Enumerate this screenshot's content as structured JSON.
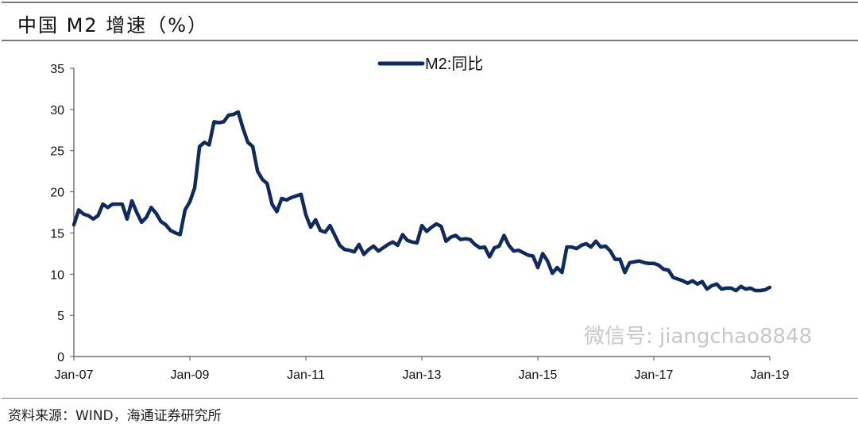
{
  "header": {
    "title": "中国 M2 增速（%）"
  },
  "footer": {
    "source": "资料来源：WIND，海通证券研究所"
  },
  "watermark": {
    "text": "微信号: jiangchao8848"
  },
  "colors": {
    "series": "#0f2a5f",
    "axis": "#555555"
  },
  "chart_data": {
    "type": "line",
    "title": "中国 M2 增速（%）",
    "xlabel": "",
    "ylabel": "",
    "ylim": [
      0,
      35
    ],
    "yticks": [
      0,
      5,
      10,
      15,
      20,
      25,
      30,
      35
    ],
    "xticks": [
      "Jan-07",
      "Jan-09",
      "Jan-11",
      "Jan-13",
      "Jan-15",
      "Jan-17",
      "Jan-19"
    ],
    "x_start": "Jan-07",
    "x_unit": "month",
    "legend": {
      "position": "top-center",
      "entries": [
        "M2:同比"
      ]
    },
    "grid": false,
    "series": [
      {
        "name": "M2:同比",
        "values": [
          16.0,
          17.8,
          17.3,
          17.1,
          16.7,
          17.1,
          18.5,
          18.1,
          18.5,
          18.5,
          18.5,
          16.7,
          18.9,
          17.5,
          16.3,
          16.9,
          18.1,
          17.4,
          16.4,
          16.0,
          15.3,
          15.0,
          14.8,
          17.8,
          18.8,
          20.5,
          25.5,
          26.0,
          25.7,
          28.5,
          28.4,
          28.5,
          29.3,
          29.4,
          29.7,
          27.7,
          26.0,
          25.5,
          22.5,
          21.5,
          21.0,
          18.5,
          17.6,
          19.2,
          19.0,
          19.3,
          19.5,
          19.7,
          17.2,
          15.7,
          16.6,
          15.3,
          15.1,
          15.9,
          14.7,
          13.5,
          13.0,
          12.9,
          12.7,
          13.6,
          12.4,
          13.0,
          13.4,
          12.8,
          13.2,
          13.6,
          13.9,
          13.5,
          14.8,
          14.1,
          13.9,
          13.8,
          15.9,
          15.2,
          15.7,
          16.1,
          15.8,
          14.0,
          14.5,
          14.7,
          14.2,
          14.3,
          14.2,
          13.6,
          13.2,
          13.3,
          12.1,
          13.2,
          13.4,
          14.7,
          13.5,
          12.8,
          12.9,
          12.6,
          12.3,
          12.2,
          10.8,
          12.5,
          11.6,
          10.1,
          10.8,
          10.2,
          13.3,
          13.3,
          13.1,
          13.5,
          13.7,
          13.3,
          14.0,
          13.3,
          13.4,
          12.8,
          11.8,
          11.8,
          10.2,
          11.4,
          11.5,
          11.6,
          11.4,
          11.3,
          11.3,
          11.1,
          10.6,
          10.5,
          9.6,
          9.4,
          9.2,
          8.9,
          9.2,
          8.8,
          9.1,
          8.2,
          8.6,
          8.8,
          8.2,
          8.3,
          8.3,
          8.0,
          8.5,
          8.2,
          8.3,
          8.0,
          8.0,
          8.1,
          8.4
        ]
      }
    ]
  }
}
